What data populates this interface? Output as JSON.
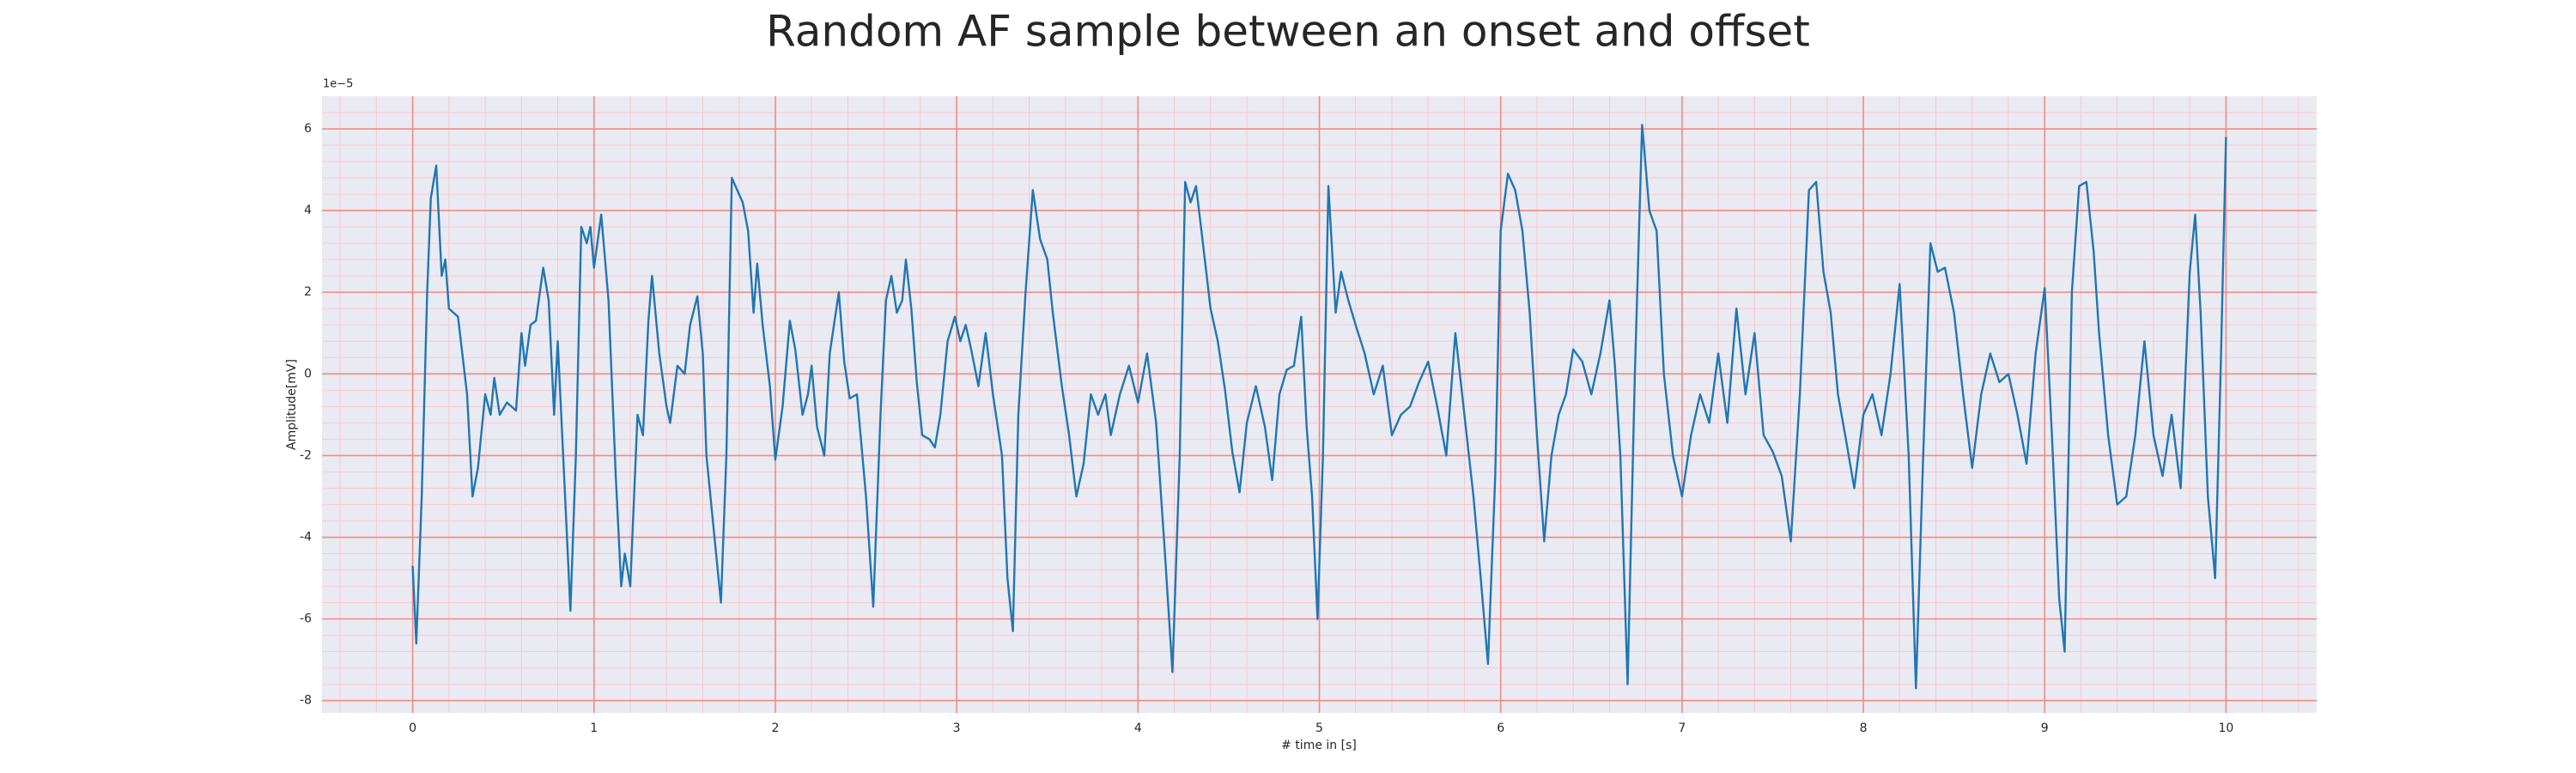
{
  "chart_data": {
    "type": "line",
    "title": "Random AF sample between an onset and offset",
    "xlabel": "# time in [s]",
    "ylabel": "Amplitude[mV]",
    "y_offset_label": "1e−5",
    "xlim": [
      -0.5,
      10.5
    ],
    "ylim": [
      -8.3,
      6.8
    ],
    "xticks": [
      0,
      1,
      2,
      3,
      4,
      5,
      6,
      7,
      8,
      9,
      10
    ],
    "yticks": [
      -8,
      -6,
      -4,
      -2,
      0,
      2,
      4,
      6
    ],
    "grid": true,
    "grid_color": "#f28b82",
    "minor_grid": true,
    "minor_grid_color": "#f7c9cf",
    "minor_xstep": 0.2,
    "minor_ystep": 0.4,
    "background": "#eaeaf2",
    "x": [
      0,
      0.02,
      0.05,
      0.08,
      0.1,
      0.13,
      0.16,
      0.18,
      0.2,
      0.25,
      0.3,
      0.33,
      0.36,
      0.4,
      0.43,
      0.45,
      0.48,
      0.52,
      0.57,
      0.6,
      0.62,
      0.65,
      0.68,
      0.72,
      0.75,
      0.78,
      0.8,
      0.83,
      0.87,
      0.9,
      0.93,
      0.96,
      0.98,
      1,
      1.04,
      1.08,
      1.12,
      1.15,
      1.17,
      1.2,
      1.24,
      1.27,
      1.3,
      1.32,
      1.36,
      1.4,
      1.42,
      1.46,
      1.5,
      1.53,
      1.57,
      1.6,
      1.62,
      1.66,
      1.7,
      1.73,
      1.76,
      1.78,
      1.82,
      1.85,
      1.88,
      1.9,
      1.93,
      1.97,
      2,
      2.04,
      2.08,
      2.11,
      2.15,
      2.18,
      2.2,
      2.23,
      2.27,
      2.3,
      2.35,
      2.38,
      2.41,
      2.45,
      2.5,
      2.54,
      2.58,
      2.61,
      2.64,
      2.67,
      2.7,
      2.72,
      2.75,
      2.78,
      2.81,
      2.85,
      2.88,
      2.91,
      2.95,
      2.99,
      3.02,
      3.05,
      3.08,
      3.12,
      3.16,
      3.2,
      3.25,
      3.28,
      3.31,
      3.34,
      3.38,
      3.42,
      3.46,
      3.5,
      3.53,
      3.58,
      3.62,
      3.66,
      3.7,
      3.74,
      3.78,
      3.82,
      3.85,
      3.9,
      3.95,
      4,
      4.05,
      4.1,
      4.15,
      4.19,
      4.23,
      4.26,
      4.29,
      4.32,
      4.35,
      4.4,
      4.44,
      4.48,
      4.52,
      4.56,
      4.6,
      4.65,
      4.7,
      4.74,
      4.78,
      4.82,
      4.86,
      4.9,
      4.93,
      4.96,
      4.99,
      5.02,
      5.05,
      5.09,
      5.12,
      5.16,
      5.2,
      5.25,
      5.3,
      5.35,
      5.4,
      5.45,
      5.5,
      5.55,
      5.6,
      5.65,
      5.7,
      5.75,
      5.8,
      5.85,
      5.89,
      5.93,
      5.97,
      6,
      6.04,
      6.08,
      6.12,
      6.16,
      6.2,
      6.24,
      6.28,
      6.32,
      6.36,
      6.4,
      6.45,
      6.5,
      6.55,
      6.6,
      6.63,
      6.66,
      6.7,
      6.74,
      6.78,
      6.82,
      6.86,
      6.9,
      6.95,
      7,
      7.05,
      7.1,
      7.15,
      7.2,
      7.25,
      7.3,
      7.35,
      7.4,
      7.45,
      7.5,
      7.55,
      7.6,
      7.65,
      7.7,
      7.74,
      7.78,
      7.82,
      7.86,
      7.9,
      7.95,
      8,
      8.05,
      8.1,
      8.15,
      8.2,
      8.25,
      8.29,
      8.33,
      8.37,
      8.41,
      8.45,
      8.5,
      8.55,
      8.6,
      8.65,
      8.7,
      8.75,
      8.8,
      8.85,
      8.9,
      8.95,
      9,
      9.04,
      9.08,
      9.11,
      9.15,
      9.19,
      9.23,
      9.27,
      9.3,
      9.35,
      9.4,
      9.45,
      9.5,
      9.55,
      9.6,
      9.65,
      9.7,
      9.75,
      9.8,
      9.83,
      9.86,
      9.9,
      9.94,
      9.97,
      10
    ],
    "series": [
      {
        "color": "#1f77b4",
        "values": [
          -4.7,
          -6.6,
          -3,
          2,
          4.3,
          5.1,
          2.4,
          2.8,
          1.6,
          1.4,
          -0.5,
          -3,
          -2.3,
          -0.5,
          -1,
          -0.1,
          -1,
          -0.7,
          -0.9,
          1,
          0.2,
          1.2,
          1.3,
          2.6,
          1.8,
          -1,
          0.8,
          -2,
          -5.8,
          -2,
          3.6,
          3.2,
          3.6,
          2.6,
          3.9,
          1.8,
          -2.5,
          -5.2,
          -4.4,
          -5.2,
          -1,
          -1.5,
          1.3,
          2.4,
          0.5,
          -0.8,
          -1.2,
          0.2,
          0,
          1.2,
          1.9,
          0.5,
          -2,
          -3.8,
          -5.6,
          -2,
          4.8,
          4.6,
          4.2,
          3.5,
          1.5,
          2.7,
          1.2,
          -0.3,
          -2.1,
          -0.8,
          1.3,
          0.6,
          -1,
          -0.5,
          0.2,
          -1.3,
          -2,
          0.5,
          2,
          0.3,
          -0.6,
          -0.5,
          -3,
          -5.7,
          -1,
          1.8,
          2.4,
          1.5,
          1.8,
          2.8,
          1.6,
          -0.2,
          -1.5,
          -1.6,
          -1.8,
          -1,
          0.8,
          1.4,
          0.8,
          1.2,
          0.6,
          -0.3,
          1,
          -0.5,
          -2,
          -5,
          -6.3,
          -1,
          2,
          4.5,
          3.3,
          2.8,
          1.5,
          -0.3,
          -1.5,
          -3,
          -2.2,
          -0.5,
          -1,
          -0.5,
          -1.5,
          -0.5,
          0.2,
          -0.7,
          0.5,
          -1.2,
          -4.5,
          -7.3,
          -2,
          4.7,
          4.2,
          4.6,
          3.5,
          1.6,
          0.8,
          -0.4,
          -1.9,
          -2.9,
          -1.2,
          -0.3,
          -1.3,
          -2.6,
          -0.5,
          0.1,
          0.2,
          1.4,
          -1.3,
          -3,
          -6,
          -2,
          4.6,
          1.5,
          2.5,
          1.8,
          1.2,
          0.5,
          -0.5,
          0.2,
          -1.5,
          -1,
          -0.8,
          -0.2,
          0.3,
          -0.8,
          -2,
          1,
          -1,
          -3,
          -5,
          -7.1,
          -2.5,
          3.5,
          4.9,
          4.5,
          3.5,
          1.5,
          -1.5,
          -4.1,
          -2,
          -1,
          -0.5,
          0.6,
          0.3,
          -0.5,
          0.5,
          1.8,
          0.2,
          -2,
          -7.6,
          0,
          6.1,
          4,
          3.5,
          0,
          -2,
          -3,
          -1.5,
          -0.5,
          -1.2,
          0.5,
          -1.2,
          1.6,
          -0.5,
          1,
          -1.5,
          -1.9,
          -2.5,
          -4.1,
          -0.5,
          4.5,
          4.7,
          2.5,
          1.5,
          -0.5,
          -1.5,
          -2.8,
          -1,
          -0.5,
          -1.5,
          0,
          2.2,
          -2,
          -7.7,
          -2,
          3.2,
          2.5,
          2.6,
          1.5,
          -0.5,
          -2.3,
          -0.5,
          0.5,
          -0.2,
          0,
          -1,
          -2.2,
          0.5,
          2.1,
          -1.5,
          -5.5,
          -6.8,
          2,
          4.6,
          4.7,
          3,
          1,
          -1.5,
          -3.2,
          -3,
          -1.5,
          0.8,
          -1.5,
          -2.5,
          -1,
          -2.8,
          2.5,
          3.9,
          1.5,
          -3,
          -5,
          0,
          5.8
        ]
      }
    ]
  }
}
